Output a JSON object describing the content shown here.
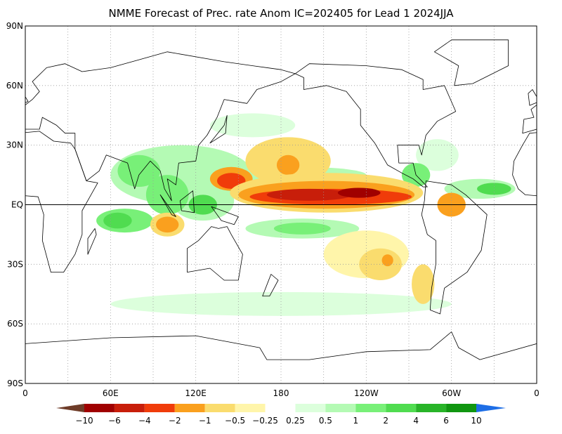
{
  "header": {
    "title": "NMME Forecast of Prec. rate Anom IC=202405 for Lead 1 2024JJA"
  },
  "map": {
    "lat_labels": [
      "90N",
      "60N",
      "30N",
      "EQ",
      "30S",
      "60S",
      "90S"
    ],
    "lon_labels": [
      "0",
      "60E",
      "120E",
      "180",
      "120W",
      "60W",
      "0"
    ]
  },
  "colorbar": {
    "labels": [
      "−10",
      "−6",
      "−4",
      "−2",
      "−1",
      "−0.5",
      "−0.25",
      "0.25",
      "0.5",
      "1",
      "2",
      "4",
      "6",
      "10"
    ]
  }
}
